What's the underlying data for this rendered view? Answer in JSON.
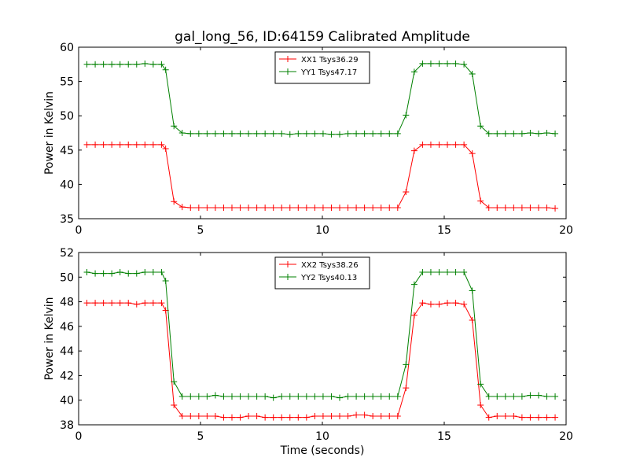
{
  "chart_data": [
    {
      "type": "line",
      "title": "gal_long_56, ID:64159 Calibrated Amplitude",
      "xlabel": "",
      "ylabel": "Power in Kelvin",
      "xlim": [
        0,
        20
      ],
      "ylim": [
        35,
        60
      ],
      "xticks": [
        "0",
        "5",
        "10",
        "15",
        "20"
      ],
      "yticks": [
        "35",
        "40",
        "45",
        "50",
        "55",
        "60"
      ],
      "legend_position": "top-center",
      "x": [
        0.34,
        0.68,
        1.02,
        1.36,
        1.7,
        2.04,
        2.38,
        2.72,
        3.06,
        3.4,
        3.57,
        3.91,
        4.25,
        4.59,
        4.93,
        5.27,
        5.61,
        5.95,
        6.29,
        6.63,
        6.97,
        7.31,
        7.65,
        7.99,
        8.33,
        8.67,
        9.01,
        9.35,
        9.69,
        10.03,
        10.37,
        10.71,
        11.05,
        11.39,
        11.73,
        12.07,
        12.41,
        12.75,
        13.09,
        13.43,
        13.77,
        14.11,
        14.45,
        14.79,
        15.13,
        15.47,
        15.81,
        16.15,
        16.49,
        16.83,
        17.17,
        17.51,
        17.85,
        18.19,
        18.53,
        18.87,
        19.21,
        19.55
      ],
      "series": [
        {
          "name": "XX1 Tsys36.29",
          "color": "#ff0000",
          "values": [
            45.8,
            45.8,
            45.8,
            45.8,
            45.8,
            45.8,
            45.8,
            45.8,
            45.8,
            45.8,
            45.2,
            37.5,
            36.7,
            36.6,
            36.6,
            36.6,
            36.6,
            36.6,
            36.6,
            36.6,
            36.6,
            36.6,
            36.6,
            36.6,
            36.6,
            36.6,
            36.6,
            36.6,
            36.6,
            36.6,
            36.6,
            36.6,
            36.6,
            36.6,
            36.6,
            36.6,
            36.6,
            36.6,
            36.6,
            38.9,
            44.9,
            45.8,
            45.8,
            45.8,
            45.8,
            45.8,
            45.8,
            44.5,
            37.6,
            36.6,
            36.6,
            36.6,
            36.6,
            36.6,
            36.6,
            36.6,
            36.6,
            36.5
          ]
        },
        {
          "name": "YY1 Tsys47.17",
          "color": "#008000",
          "values": [
            57.5,
            57.5,
            57.5,
            57.5,
            57.5,
            57.5,
            57.5,
            57.6,
            57.5,
            57.5,
            56.7,
            48.5,
            47.5,
            47.4,
            47.4,
            47.4,
            47.4,
            47.4,
            47.4,
            47.4,
            47.4,
            47.4,
            47.4,
            47.4,
            47.4,
            47.3,
            47.4,
            47.4,
            47.4,
            47.4,
            47.3,
            47.3,
            47.4,
            47.4,
            47.4,
            47.4,
            47.4,
            47.4,
            47.4,
            50.1,
            56.4,
            57.6,
            57.6,
            57.6,
            57.6,
            57.6,
            57.5,
            56.1,
            48.5,
            47.4,
            47.4,
            47.4,
            47.4,
            47.4,
            47.5,
            47.4,
            47.5,
            47.4
          ]
        }
      ]
    },
    {
      "type": "line",
      "title": "",
      "xlabel": "Time (seconds)",
      "ylabel": "Power in Kelvin",
      "xlim": [
        0,
        20
      ],
      "ylim": [
        38,
        52
      ],
      "xticks": [
        "0",
        "5",
        "10",
        "15",
        "20"
      ],
      "yticks": [
        "38",
        "40",
        "42",
        "44",
        "46",
        "48",
        "50",
        "52"
      ],
      "legend_position": "top-center",
      "x": [
        0.34,
        0.68,
        1.02,
        1.36,
        1.7,
        2.04,
        2.38,
        2.72,
        3.06,
        3.4,
        3.57,
        3.91,
        4.25,
        4.59,
        4.93,
        5.27,
        5.61,
        5.95,
        6.29,
        6.63,
        6.97,
        7.31,
        7.65,
        7.99,
        8.33,
        8.67,
        9.01,
        9.35,
        9.69,
        10.03,
        10.37,
        10.71,
        11.05,
        11.39,
        11.73,
        12.07,
        12.41,
        12.75,
        13.09,
        13.43,
        13.77,
        14.11,
        14.45,
        14.79,
        15.13,
        15.47,
        15.81,
        16.15,
        16.49,
        16.83,
        17.17,
        17.51,
        17.85,
        18.19,
        18.53,
        18.87,
        19.21,
        19.55
      ],
      "series": [
        {
          "name": "XX2 Tsys38.26",
          "color": "#ff0000",
          "values": [
            47.9,
            47.9,
            47.9,
            47.9,
            47.9,
            47.9,
            47.8,
            47.9,
            47.9,
            47.9,
            47.3,
            39.6,
            38.7,
            38.7,
            38.7,
            38.7,
            38.7,
            38.6,
            38.6,
            38.6,
            38.7,
            38.7,
            38.6,
            38.6,
            38.6,
            38.6,
            38.6,
            38.6,
            38.7,
            38.7,
            38.7,
            38.7,
            38.7,
            38.8,
            38.8,
            38.7,
            38.7,
            38.7,
            38.7,
            41.0,
            46.9,
            47.9,
            47.8,
            47.8,
            47.9,
            47.9,
            47.8,
            46.5,
            39.6,
            38.6,
            38.7,
            38.7,
            38.7,
            38.6,
            38.6,
            38.6,
            38.6,
            38.6
          ]
        },
        {
          "name": "YY2 Tsys40.13",
          "color": "#008000",
          "values": [
            50.4,
            50.3,
            50.3,
            50.3,
            50.4,
            50.3,
            50.3,
            50.4,
            50.4,
            50.4,
            49.7,
            41.5,
            40.3,
            40.3,
            40.3,
            40.3,
            40.4,
            40.3,
            40.3,
            40.3,
            40.3,
            40.3,
            40.3,
            40.2,
            40.3,
            40.3,
            40.3,
            40.3,
            40.3,
            40.3,
            40.3,
            40.2,
            40.3,
            40.3,
            40.3,
            40.3,
            40.3,
            40.3,
            40.3,
            42.9,
            49.4,
            50.4,
            50.4,
            50.4,
            50.4,
            50.4,
            50.4,
            48.9,
            41.3,
            40.3,
            40.3,
            40.3,
            40.3,
            40.3,
            40.4,
            40.4,
            40.3,
            40.3
          ]
        }
      ]
    }
  ]
}
